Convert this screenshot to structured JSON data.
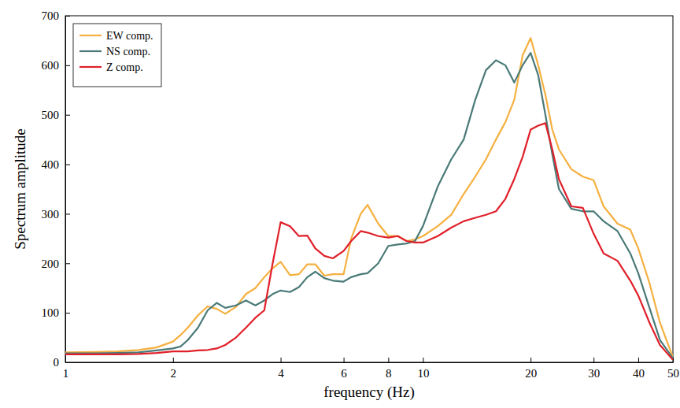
{
  "chart_data": {
    "type": "line",
    "log": "x",
    "grid": false,
    "legend": "upper left",
    "x_label": "frequency (Hz)",
    "y_label": "Spectrum amplitude",
    "x": [
      1,
      1.2,
      1.4,
      1.6,
      1.8,
      2,
      2.1,
      2.2,
      2.35,
      2.5,
      2.65,
      2.8,
      3,
      3.2,
      3.4,
      3.6,
      3.8,
      4,
      4.25,
      4.5,
      4.75,
      5,
      5.3,
      5.6,
      6,
      6.3,
      6.7,
      7,
      7.5,
      8,
      8.5,
      9,
      9.5,
      10,
      11,
      12,
      13,
      14,
      15,
      16,
      17,
      18,
      19,
      20,
      21,
      22,
      23,
      24,
      26,
      28,
      30,
      32,
      35,
      38,
      40,
      43,
      46,
      50
    ],
    "series": [
      {
        "name": "EW comp.",
        "color": "#f5b040",
        "values": [
          20,
          21,
          22,
          25,
          30,
          42,
          55,
          70,
          95,
          113,
          108,
          98,
          112,
          138,
          150,
          172,
          190,
          203,
          176,
          178,
          198,
          198,
          175,
          178,
          178,
          250,
          300,
          318,
          280,
          255,
          255,
          245,
          248,
          255,
          275,
          298,
          340,
          375,
          410,
          450,
          485,
          530,
          620,
          655,
          600,
          540,
          470,
          430,
          390,
          375,
          368,
          315,
          280,
          268,
          230,
          160,
          80,
          10
        ]
      },
      {
        "name": "NS comp.",
        "color": "#4a7a78",
        "values": [
          18,
          18,
          19,
          20,
          24,
          28,
          32,
          45,
          70,
          105,
          120,
          110,
          115,
          125,
          115,
          125,
          138,
          145,
          142,
          152,
          172,
          183,
          170,
          165,
          163,
          172,
          178,
          180,
          200,
          235,
          238,
          240,
          245,
          275,
          355,
          410,
          450,
          530,
          590,
          610,
          600,
          565,
          600,
          625,
          580,
          500,
          420,
          350,
          310,
          305,
          305,
          285,
          265,
          220,
          180,
          110,
          45,
          8
        ]
      },
      {
        "name": "Z comp.",
        "color": "#e0202a",
        "values": [
          16,
          16,
          16,
          17,
          19,
          22,
          22,
          22,
          24,
          25,
          28,
          35,
          50,
          70,
          90,
          105,
          200,
          283,
          275,
          255,
          256,
          230,
          215,
          210,
          225,
          245,
          265,
          262,
          255,
          252,
          255,
          245,
          242,
          242,
          255,
          272,
          285,
          292,
          298,
          305,
          330,
          370,
          415,
          470,
          478,
          483,
          430,
          370,
          315,
          312,
          260,
          220,
          205,
          165,
          135,
          80,
          35,
          5
        ]
      }
    ],
    "xlim": [
      1,
      50
    ],
    "xticks": [
      1,
      2,
      4,
      6,
      8,
      10,
      20,
      30,
      40,
      50
    ],
    "ylim": [
      0,
      700
    ],
    "yticks": [
      0,
      100,
      200,
      300,
      400,
      500,
      600,
      700
    ]
  }
}
